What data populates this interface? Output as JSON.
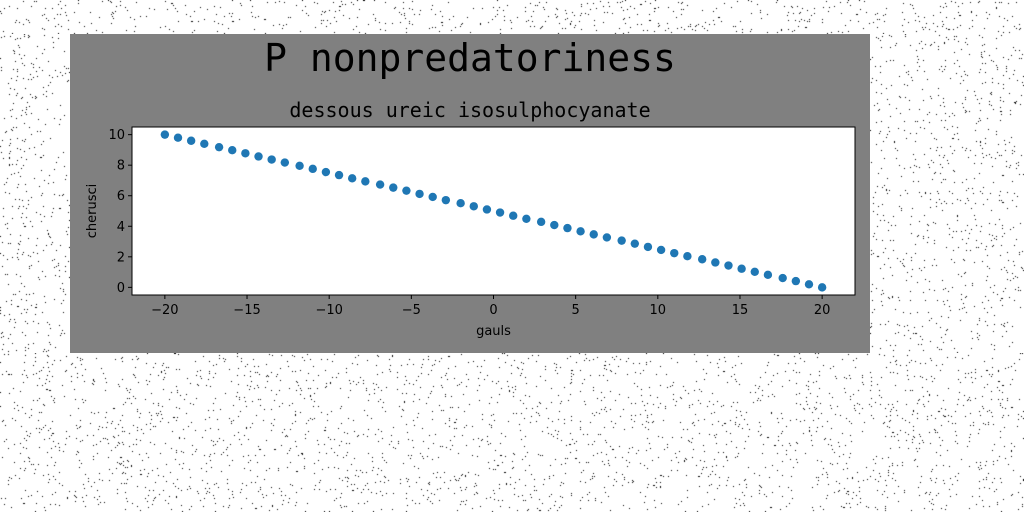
{
  "figure": {
    "suptitle": "P nonpredatoriness",
    "background_color": "#808080"
  },
  "chart_data": {
    "type": "scatter",
    "title": "dessous ureic isosulphocyanate",
    "xlabel": "gauls",
    "ylabel": "cherusci",
    "xlim": [
      -22,
      22
    ],
    "ylim": [
      -0.5,
      10.5
    ],
    "x_ticks": [
      -20,
      -15,
      -10,
      -5,
      0,
      5,
      10,
      15,
      20
    ],
    "y_ticks": [
      0,
      2,
      4,
      6,
      8,
      10
    ],
    "x_tick_labels": [
      "−20",
      "−15",
      "−10",
      "−5",
      "0",
      "5",
      "10",
      "15",
      "20"
    ],
    "y_tick_labels": [
      "0",
      "2",
      "4",
      "6",
      "8",
      "10"
    ],
    "grid": false,
    "series": [
      {
        "color": "#1f77b4",
        "marker": "circle",
        "x": [
          -20,
          -19.2,
          -18.4,
          -17.6,
          -16.7,
          -15.9,
          -15.1,
          -14.3,
          -13.5,
          -12.7,
          -11.8,
          -11,
          -10.2,
          -9.4,
          -8.6,
          -7.8,
          -6.9,
          -6.1,
          -5.3,
          -4.5,
          -3.7,
          -2.9,
          -2,
          -1.2,
          -0.4,
          0.4,
          1.2,
          2,
          2.9,
          3.7,
          4.5,
          5.3,
          6.1,
          6.9,
          7.8,
          8.6,
          9.4,
          10.2,
          11,
          11.8,
          12.7,
          13.5,
          14.3,
          15.1,
          15.9,
          16.7,
          17.6,
          18.4,
          19.2,
          20
        ],
        "y": [
          10,
          9.8,
          9.6,
          9.4,
          9.18,
          8.98,
          8.78,
          8.57,
          8.37,
          8.17,
          7.96,
          7.76,
          7.55,
          7.35,
          7.14,
          6.94,
          6.73,
          6.53,
          6.33,
          6.12,
          5.92,
          5.71,
          5.51,
          5.31,
          5.1,
          4.9,
          4.69,
          4.49,
          4.29,
          4.08,
          3.88,
          3.67,
          3.47,
          3.27,
          3.06,
          2.86,
          2.65,
          2.45,
          2.24,
          2.04,
          1.84,
          1.63,
          1.43,
          1.22,
          1.02,
          0.82,
          0.61,
          0.41,
          0.2,
          0
        ]
      }
    ]
  }
}
